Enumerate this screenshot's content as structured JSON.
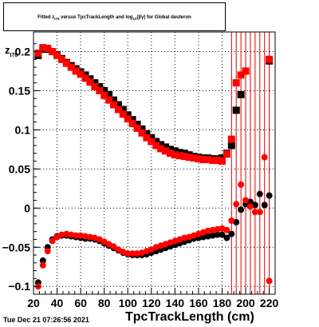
{
  "title": {
    "part1": "Fitted  z",
    "sub1": "I70",
    "part2": "  versus TpcTrackLength and log",
    "sub2": "10",
    "part3": "(βγ) for Global deuteron"
  },
  "footer": "Tue Dec 21 07:26:56 2021",
  "chart_data": {
    "type": "scatter",
    "title": "Fitted z_I70 versus TpcTrackLength and log10(βγ) for Global deuteron",
    "xlabel": "TpcTrackLength (cm)",
    "ylabel": "z_I70",
    "xlim": [
      20,
      225
    ],
    "ylim": [
      -0.11,
      0.225
    ],
    "x_ticks": [
      20,
      40,
      60,
      80,
      100,
      120,
      140,
      160,
      180,
      200,
      220
    ],
    "y_ticks": [
      -0.1,
      -0.05,
      0,
      0.05,
      0.1,
      0.15,
      0.2
    ],
    "y_tick_labels": [
      "−0.1",
      "−0.05",
      "0",
      "0.05",
      "0.1",
      "0.15",
      "0.2"
    ],
    "grid": true,
    "series": [
      {
        "marker": "square",
        "color": "#000000",
        "role": "mean",
        "x": [
          24,
          28,
          32,
          36,
          40,
          44,
          48,
          52,
          56,
          60,
          64,
          68,
          72,
          76,
          80,
          84,
          88,
          92,
          96,
          100,
          104,
          108,
          112,
          116,
          120,
          124,
          128,
          132,
          136,
          140,
          144,
          148,
          152,
          156,
          160,
          164,
          168,
          172,
          176,
          180,
          184,
          188,
          192,
          196,
          200,
          204,
          208,
          212,
          216,
          220
        ],
        "y": [
          0.195,
          0.203,
          0.203,
          0.2,
          0.196,
          0.191,
          0.186,
          0.182,
          0.178,
          0.174,
          0.17,
          0.165,
          0.16,
          0.155,
          0.15,
          0.145,
          0.138,
          0.132,
          0.126,
          0.119,
          0.113,
          0.107,
          0.101,
          0.095,
          0.09,
          0.085,
          0.081,
          0.078,
          0.075,
          0.073,
          0.071,
          0.07,
          0.068,
          0.066,
          0.065,
          0.064,
          0.064,
          0.063,
          0.063,
          0.064,
          0.07,
          0.08,
          0.125,
          0.145,
          0.175,
          null,
          null,
          null,
          null,
          0.188
        ]
      },
      {
        "marker": "square",
        "color": "#ff0000",
        "role": "mean",
        "x": [
          24,
          28,
          32,
          36,
          40,
          44,
          48,
          52,
          56,
          60,
          64,
          68,
          72,
          76,
          80,
          84,
          88,
          92,
          96,
          100,
          104,
          108,
          112,
          116,
          120,
          124,
          128,
          132,
          136,
          140,
          144,
          148,
          152,
          156,
          160,
          164,
          168,
          172,
          176,
          180,
          184,
          188,
          192,
          196,
          200,
          220
        ],
        "y": [
          0.198,
          0.205,
          0.204,
          0.2,
          0.195,
          0.19,
          0.185,
          0.18,
          0.175,
          0.171,
          0.166,
          0.161,
          0.155,
          0.15,
          0.144,
          0.138,
          0.132,
          0.126,
          0.12,
          0.114,
          0.108,
          0.102,
          0.096,
          0.09,
          0.085,
          0.08,
          0.076,
          0.073,
          0.07,
          0.068,
          0.067,
          0.066,
          0.065,
          0.064,
          0.063,
          0.062,
          0.062,
          0.061,
          0.061,
          0.06,
          0.069,
          0.088,
          0.16,
          0.17,
          0.175,
          0.19
        ]
      },
      {
        "marker": "circle",
        "color": "#000000",
        "role": "sigma",
        "x": [
          24,
          28,
          32,
          36,
          40,
          44,
          48,
          52,
          56,
          60,
          64,
          68,
          72,
          76,
          80,
          84,
          88,
          92,
          96,
          100,
          104,
          108,
          112,
          116,
          120,
          124,
          128,
          132,
          136,
          140,
          144,
          148,
          152,
          156,
          160,
          164,
          168,
          172,
          176,
          180,
          184,
          188,
          192,
          196,
          200,
          204,
          208,
          212,
          216,
          220
        ],
        "y": [
          -0.095,
          -0.067,
          -0.05,
          -0.04,
          -0.036,
          -0.035,
          -0.035,
          -0.036,
          -0.037,
          -0.038,
          -0.039,
          -0.039,
          -0.04,
          -0.042,
          -0.045,
          -0.048,
          -0.051,
          -0.054,
          -0.057,
          -0.059,
          -0.06,
          -0.06,
          -0.06,
          -0.059,
          -0.057,
          -0.055,
          -0.053,
          -0.051,
          -0.049,
          -0.047,
          -0.045,
          -0.043,
          -0.041,
          -0.039,
          -0.038,
          -0.037,
          -0.036,
          -0.035,
          -0.034,
          -0.034,
          -0.038,
          -0.033,
          -0.018,
          -0.002,
          0.005,
          0.008,
          0.004,
          0.018,
          0.004,
          0.016
        ]
      },
      {
        "marker": "circle",
        "color": "#ff0000",
        "role": "sigma",
        "x": [
          24,
          28,
          32,
          36,
          40,
          44,
          48,
          52,
          56,
          60,
          64,
          68,
          72,
          76,
          80,
          84,
          88,
          92,
          96,
          100,
          104,
          108,
          112,
          116,
          120,
          124,
          128,
          132,
          136,
          140,
          144,
          148,
          152,
          156,
          160,
          164,
          168,
          172,
          176,
          180,
          184,
          188,
          192,
          196,
          200,
          204,
          208,
          212,
          216,
          220
        ],
        "y": [
          -0.1,
          -0.073,
          -0.055,
          -0.042,
          -0.037,
          -0.034,
          -0.033,
          -0.034,
          -0.035,
          -0.035,
          -0.036,
          -0.037,
          -0.038,
          -0.04,
          -0.043,
          -0.046,
          -0.049,
          -0.053,
          -0.056,
          -0.058,
          -0.058,
          -0.058,
          -0.057,
          -0.055,
          -0.053,
          -0.05,
          -0.048,
          -0.046,
          -0.044,
          -0.042,
          -0.04,
          -0.038,
          -0.037,
          -0.035,
          -0.033,
          -0.031,
          -0.029,
          -0.028,
          -0.027,
          -0.026,
          -0.028,
          -0.016,
          0.005,
          0.03,
          0.01,
          0.002,
          -0.005,
          -0.005,
          0.065,
          -0.093
        ]
      }
    ],
    "error_bar_x": [
      188,
      192,
      196,
      200,
      204,
      208,
      212,
      216,
      220
    ]
  }
}
